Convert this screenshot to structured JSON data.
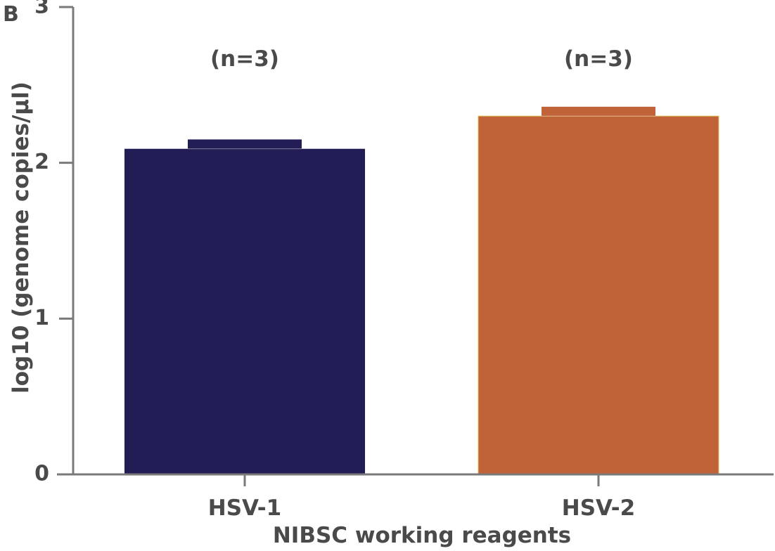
{
  "panel_label": "B",
  "colors": {
    "axis": "#7a7a7a",
    "text": "#4a4a4a",
    "hsv1": "#221e55",
    "hsv2": "#c06338"
  },
  "chart_data": {
    "type": "bar",
    "xlabel": "NIBSC working reagents",
    "ylabel": "log10 (genome copies/µl)",
    "ylim": [
      0,
      3
    ],
    "yticks": [
      "0",
      "1",
      "2",
      "3"
    ],
    "categories": [
      "HSV-1",
      "HSV-2"
    ],
    "values": [
      2.09,
      2.3
    ],
    "errors": [
      0.06,
      0.06
    ],
    "annotations": [
      "(n=3)",
      "(n=3)"
    ],
    "grid": false,
    "legend": "none"
  }
}
